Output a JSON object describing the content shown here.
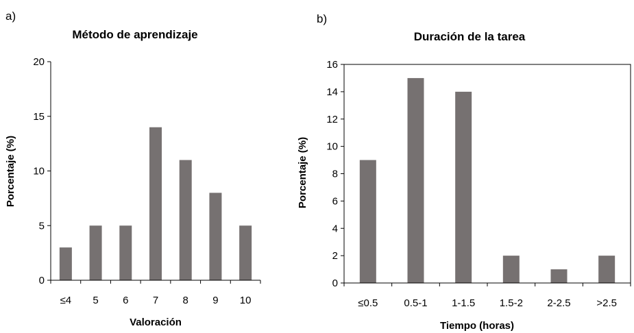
{
  "chart_data": [
    {
      "type": "bar",
      "panel_label": "a)",
      "title": "Método de aprendizaje",
      "xlabel": "Valoración",
      "ylabel": "Porcentaje (%)",
      "categories": [
        "≤4",
        "5",
        "6",
        "7",
        "8",
        "9",
        "10"
      ],
      "values": [
        3,
        5,
        5,
        14,
        11,
        8,
        5
      ],
      "ylim": [
        0,
        20
      ],
      "yticks": [
        "0",
        "5",
        "10",
        "15",
        "20"
      ],
      "grid": false,
      "bar_color": "#767171"
    },
    {
      "type": "bar",
      "panel_label": "b)",
      "title": "Duración de la tarea",
      "xlabel": "Tiempo (horas)",
      "ylabel": "Porcentaje (%)",
      "categories": [
        "≤0.5",
        "0.5-1",
        "1-1.5",
        "1.5-2",
        "2-2.5",
        ">2.5"
      ],
      "values": [
        9,
        15,
        14,
        2,
        1,
        2
      ],
      "ylim": [
        0,
        16
      ],
      "yticks": [
        "0",
        "2",
        "4",
        "6",
        "8",
        "10",
        "12",
        "14",
        "16"
      ],
      "grid": false,
      "bar_color": "#767171"
    }
  ]
}
